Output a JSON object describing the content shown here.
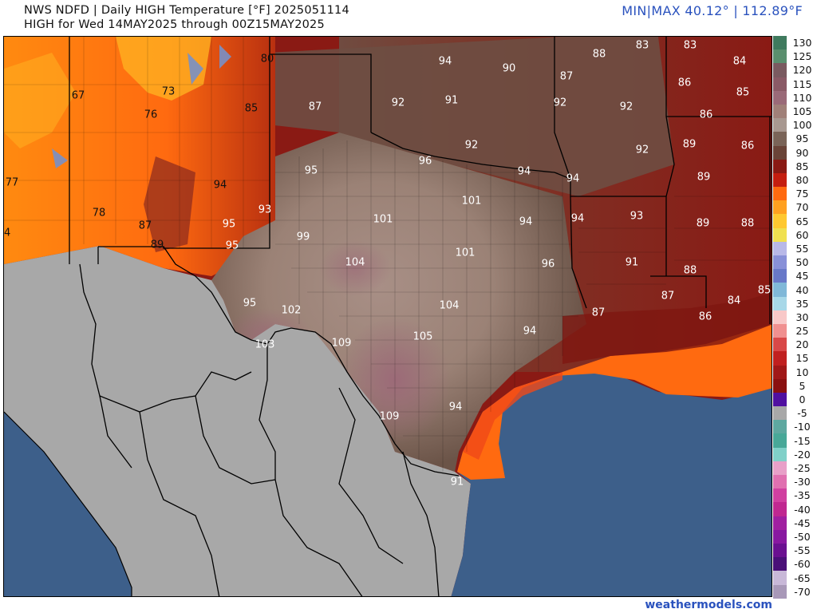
{
  "header": {
    "title_line1": "NWS NDFD | Daily HIGH Temperature [°F]  2025051114",
    "title_line2": "HIGH for Wed 14MAY2025 through 00Z15MAY2025",
    "minmax": "MIN|MAX 40.12°  |  112.89°F"
  },
  "footer": {
    "credit": "weathermodels.com"
  },
  "colors": {
    "ocean": "#3d5f8a",
    "mexico_land": "#a8a8a8",
    "gulf_warm": "#ff6a10",
    "coast_orange": "#f05818",
    "texas_core": "#a88f86",
    "hot_pink": "#9c6a78",
    "brown": "#6b5448",
    "dark_red": "#8a1a14",
    "mountain_orange": "#ff7a10",
    "high_terrain_yellow": "#ffb020"
  },
  "map_labels": [
    {
      "text": "80"
    },
    {
      "text": "94"
    },
    {
      "text": "90"
    },
    {
      "text": "88"
    },
    {
      "text": "83"
    },
    {
      "text": "83"
    },
    {
      "text": "84"
    },
    {
      "text": "67"
    },
    {
      "text": "73"
    },
    {
      "text": "76"
    },
    {
      "text": "85"
    },
    {
      "text": "87"
    },
    {
      "text": "92"
    },
    {
      "text": "91"
    },
    {
      "text": "87"
    },
    {
      "text": "92"
    },
    {
      "text": "92"
    },
    {
      "text": "86"
    },
    {
      "text": "85"
    },
    {
      "text": "86"
    },
    {
      "text": "92"
    },
    {
      "text": "92"
    },
    {
      "text": "89"
    },
    {
      "text": "86"
    },
    {
      "text": "77"
    },
    {
      "text": "95"
    },
    {
      "text": "96"
    },
    {
      "text": "94"
    },
    {
      "text": "94"
    },
    {
      "text": "89"
    },
    {
      "text": "94"
    },
    {
      "text": "78"
    },
    {
      "text": "93"
    },
    {
      "text": "101"
    },
    {
      "text": "101"
    },
    {
      "text": "94"
    },
    {
      "text": "94"
    },
    {
      "text": "93"
    },
    {
      "text": "89"
    },
    {
      "text": "88"
    },
    {
      "text": "84"
    },
    {
      "text": "87"
    },
    {
      "text": "95"
    },
    {
      "text": "99"
    },
    {
      "text": "89"
    },
    {
      "text": "95"
    },
    {
      "text": "104"
    },
    {
      "text": "101"
    },
    {
      "text": "96"
    },
    {
      "text": "91"
    },
    {
      "text": "88"
    },
    {
      "text": "87"
    },
    {
      "text": "85"
    },
    {
      "text": "84"
    },
    {
      "text": "95"
    },
    {
      "text": "102"
    },
    {
      "text": "104"
    },
    {
      "text": "87"
    },
    {
      "text": "86"
    },
    {
      "text": "103"
    },
    {
      "text": "109"
    },
    {
      "text": "105"
    },
    {
      "text": "94"
    },
    {
      "text": "109"
    },
    {
      "text": "94"
    },
    {
      "text": "91"
    }
  ],
  "legend": {
    "ticks": [
      "130",
      "125",
      "120",
      "115",
      "110",
      "105",
      "100",
      "95",
      "90",
      "85",
      "80",
      "75",
      "70",
      "65",
      "60",
      "55",
      "50",
      "45",
      "40",
      "35",
      "30",
      "25",
      "20",
      "15",
      "10",
      "5",
      "0",
      "-5",
      "-10",
      "-15",
      "-20",
      "-25",
      "-30",
      "-35",
      "-40",
      "-45",
      "-50",
      "-55",
      "-60",
      "-65",
      "-70"
    ],
    "colors": [
      "#3f7a5e",
      "#5a8f6e",
      "#7a5a60",
      "#8a5a66",
      "#9a6a78",
      "#a08078",
      "#a89890",
      "#7a6458",
      "#6a4438",
      "#8a1a14",
      "#c41e10",
      "#ff6a10",
      "#ffa020",
      "#ffc830",
      "#f0e050",
      "#b8b8e8",
      "#8890d8",
      "#6878c8",
      "#80b8d8",
      "#a8d8e8",
      "#f8c8c8",
      "#f09090",
      "#d84848",
      "#c02020",
      "#a01818",
      "#8a1010",
      "#5010a0",
      "#a8a8a8",
      "#5ea8a0",
      "#48a898",
      "#80d0c8",
      "#e8a0c8",
      "#e070b0",
      "#d040a0",
      "#c02890",
      "#a020a0",
      "#8818a0",
      "#6a1090",
      "#4a1078",
      "#c8b8d8",
      "#a898b8"
    ]
  }
}
